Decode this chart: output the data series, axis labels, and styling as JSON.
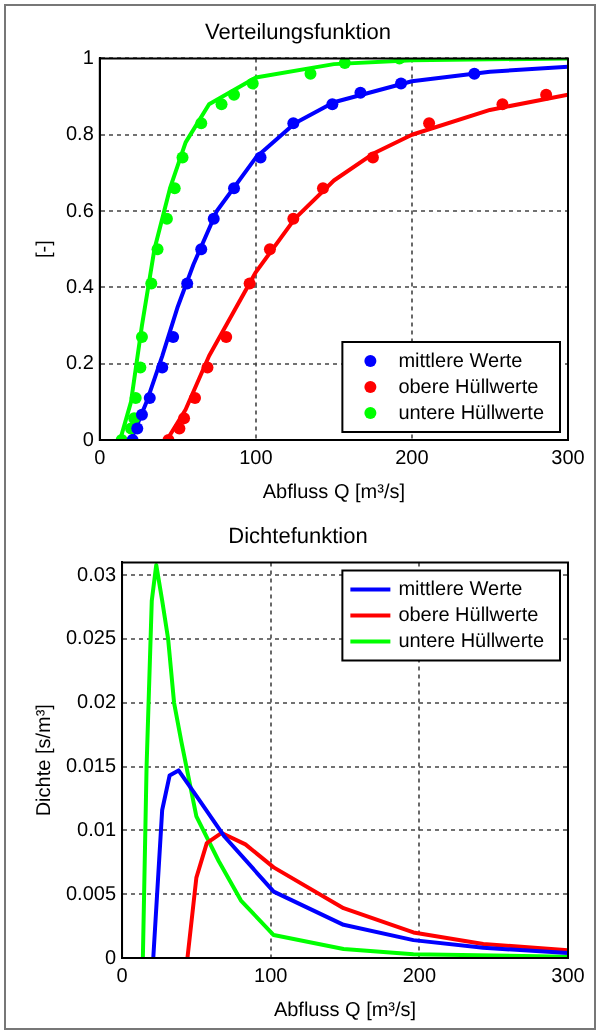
{
  "chart_data": [
    {
      "type": "scatter",
      "title": "Verteilungsfunktion",
      "xlabel": "Abfluss Q [m³/s]",
      "ylabel": "[-]",
      "xlim": [
        0,
        300
      ],
      "ylim": [
        0,
        1
      ],
      "xticks": [
        0,
        100,
        200,
        300
      ],
      "yticks": [
        0,
        0.2,
        0.4,
        0.6,
        0.8,
        1
      ],
      "grid": true,
      "legend": "bottom right",
      "series": [
        {
          "name": "mittlere Werte",
          "color": "#0000ff",
          "marker": "circle",
          "x": [
            21,
            24,
            27,
            32,
            40,
            47,
            56,
            65,
            73,
            86,
            103,
            124,
            149,
            167,
            193,
            240
          ],
          "values": [
            0,
            0.03,
            0.066,
            0.11,
            0.19,
            0.27,
            0.41,
            0.5,
            0.58,
            0.66,
            0.74,
            0.83,
            0.88,
            0.91,
            0.934,
            0.96
          ]
        },
        {
          "name": "obere Hüllwerte",
          "color": "#ff0000",
          "marker": "circle",
          "x": [
            44,
            51,
            54,
            61,
            69,
            81,
            96,
            109,
            124,
            143,
            175,
            211,
            258,
            286
          ],
          "values": [
            0,
            0.03,
            0.057,
            0.11,
            0.19,
            0.27,
            0.41,
            0.5,
            0.58,
            0.66,
            0.74,
            0.83,
            0.88,
            0.905
          ]
        },
        {
          "name": "untere Hüllwerte",
          "color": "#00ff00",
          "marker": "circle",
          "x": [
            14,
            20,
            22,
            23,
            26,
            27,
            33,
            37,
            43,
            48,
            53,
            65,
            78,
            86,
            98,
            135,
            157,
            192
          ],
          "values": [
            0,
            0.03,
            0.057,
            0.11,
            0.19,
            0.27,
            0.41,
            0.5,
            0.58,
            0.66,
            0.74,
            0.83,
            0.88,
            0.905,
            0.934,
            0.96,
            0.988,
            1
          ]
        },
        {
          "type": "line",
          "color": "#0000ff",
          "marker": "none",
          "x": [
            20,
            30,
            40,
            50,
            60,
            75,
            100,
            125,
            150,
            200,
            250,
            300
          ],
          "values": [
            0,
            0.1,
            0.22,
            0.35,
            0.46,
            0.6,
            0.74,
            0.83,
            0.885,
            0.94,
            0.965,
            0.978
          ]
        },
        {
          "type": "line",
          "color": "#ff0000",
          "marker": "none",
          "x": [
            43,
            55,
            70,
            85,
            100,
            125,
            150,
            175,
            200,
            250,
            300
          ],
          "values": [
            0,
            0.08,
            0.22,
            0.33,
            0.44,
            0.58,
            0.68,
            0.75,
            0.8,
            0.865,
            0.905
          ]
        },
        {
          "type": "line",
          "color": "#00ff00",
          "marker": "none",
          "x": [
            13,
            20,
            27,
            35,
            45,
            55,
            70,
            100,
            150,
            200,
            300
          ],
          "values": [
            0,
            0.1,
            0.3,
            0.5,
            0.66,
            0.78,
            0.88,
            0.95,
            0.985,
            0.995,
            1
          ]
        }
      ]
    },
    {
      "type": "line",
      "title": "Dichtefunktion",
      "xlabel": "Abfluss Q [m³/s]",
      "ylabel": "Dichte [s/m³]",
      "xlim": [
        0,
        300
      ],
      "ylim": [
        0,
        0.031
      ],
      "xticks": [
        0,
        100,
        200,
        300
      ],
      "yticks": [
        0,
        0.005,
        0.01,
        0.015,
        0.02,
        0.025,
        0.03
      ],
      "grid": true,
      "legend": "top right",
      "marker": "none",
      "series": [
        {
          "name": "mittlere Werte",
          "color": "#0000ff",
          "x": [
            21,
            27,
            32,
            38,
            50,
            69,
            102,
            149,
            196,
            243,
            300
          ],
          "values": [
            0,
            0.0116,
            0.0143,
            0.0147,
            0.0127,
            0.0095,
            0.0052,
            0.0026,
            0.0014,
            0.0008,
            0.0004
          ]
        },
        {
          "name": "obere Hüllwerte",
          "color": "#ff0000",
          "x": [
            44,
            50,
            57,
            67,
            83,
            102,
            149,
            196,
            243,
            300
          ],
          "values": [
            0,
            0.0063,
            0.009,
            0.0098,
            0.0089,
            0.0071,
            0.0039,
            0.002,
            0.0011,
            0.0006
          ]
        },
        {
          "name": "untere Hüllwerte",
          "color": "#00ff00",
          "x": [
            14,
            16.5,
            20,
            23,
            27,
            31,
            35,
            40,
            50,
            65,
            80,
            102,
            149,
            196,
            300
          ],
          "values": [
            0,
            0.015,
            0.028,
            0.0308,
            0.028,
            0.025,
            0.02,
            0.0169,
            0.0111,
            0.0076,
            0.0045,
            0.0018,
            0.0007,
            0.0003,
            0.0001
          ]
        }
      ]
    }
  ]
}
